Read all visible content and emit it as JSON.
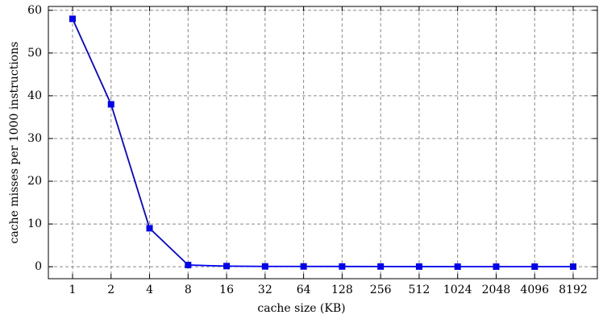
{
  "chart_data": {
    "type": "line",
    "x_label": "cache size (KB)",
    "y_label": "cache misses per 1000 instructions",
    "categories": [
      "1",
      "2",
      "4",
      "8",
      "16",
      "32",
      "64",
      "128",
      "256",
      "512",
      "1024",
      "2048",
      "4096",
      "8192"
    ],
    "series": [
      {
        "name": "cache misses",
        "color": "#0000ee",
        "values": [
          58,
          38,
          9,
          0.4,
          0.15,
          0.08,
          0.07,
          0.06,
          0.05,
          0.04,
          0.02,
          0.02,
          0.02,
          0.02
        ]
      }
    ],
    "ylim": [
      -2.8,
      60.9
    ],
    "yticks": [
      0,
      10,
      20,
      30,
      40,
      50,
      60
    ],
    "grid": true
  }
}
